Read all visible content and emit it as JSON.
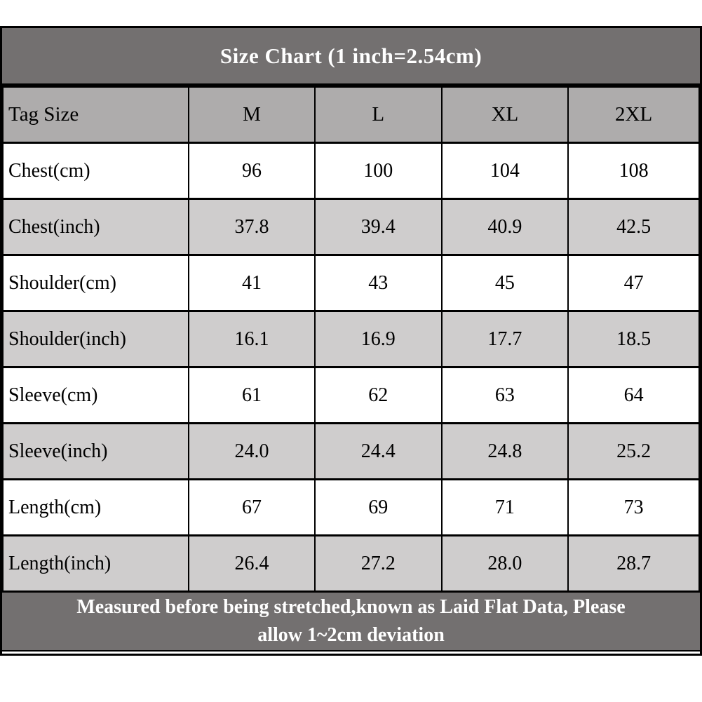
{
  "title": "Size Chart (1 inch=2.54cm)",
  "colors": {
    "band_background": "#737070",
    "band_text": "#ffffff",
    "header_row_background": "#aeacac",
    "shaded_row_background": "#cfcdcd",
    "plain_row_background": "#ffffff",
    "border": "#000000",
    "cell_text": "#000000"
  },
  "chart_data": {
    "type": "table",
    "title": "Size Chart (1 inch=2.54cm)",
    "columns": [
      "Tag Size",
      "M",
      "L",
      "XL",
      "2XL"
    ],
    "rows": [
      {
        "label": "Chest(cm)",
        "values": [
          "96",
          "100",
          "104",
          "108"
        ]
      },
      {
        "label": "Chest(inch)",
        "values": [
          "37.8",
          "39.4",
          "40.9",
          "42.5"
        ]
      },
      {
        "label": "Shoulder(cm)",
        "values": [
          "41",
          "43",
          "45",
          "47"
        ]
      },
      {
        "label": "Shoulder(inch)",
        "values": [
          "16.1",
          "16.9",
          "17.7",
          "18.5"
        ]
      },
      {
        "label": "Sleeve(cm)",
        "values": [
          "61",
          "62",
          "63",
          "64"
        ]
      },
      {
        "label": "Sleeve(inch)",
        "values": [
          "24.0",
          "24.4",
          "24.8",
          "25.2"
        ]
      },
      {
        "label": "Length(cm)",
        "values": [
          "67",
          "69",
          "71",
          "73"
        ]
      },
      {
        "label": "Length(inch)",
        "values": [
          "26.4",
          "27.2",
          "28.0",
          "28.7"
        ]
      }
    ],
    "footnote": "Measured before being stretched,known as Laid Flat Data, Please allow 1~2cm deviation"
  },
  "footer": {
    "line1": "Measured before being stretched,known as Laid Flat Data, Please",
    "line2": "allow 1~2cm deviation"
  }
}
